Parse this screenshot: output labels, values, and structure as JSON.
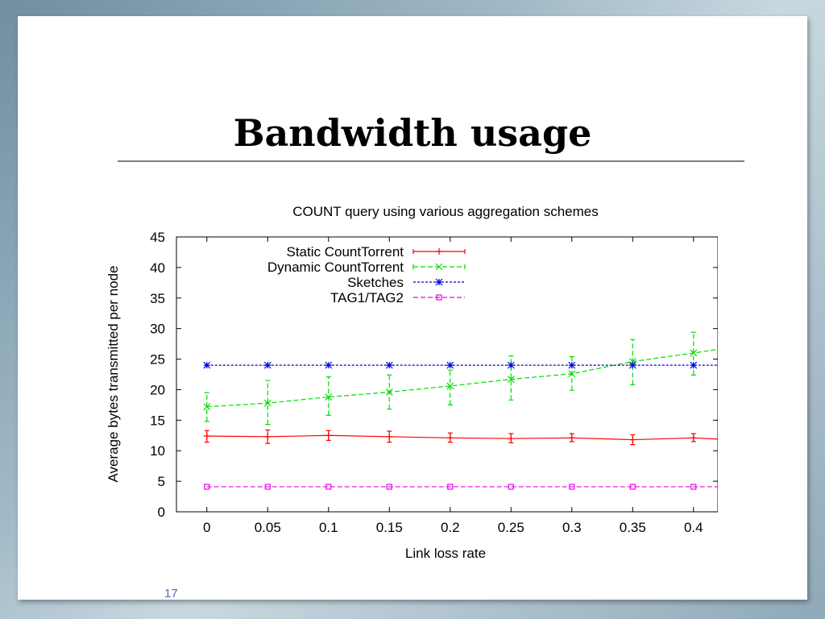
{
  "slide": {
    "title": "Bandwidth usage",
    "page_number": "17"
  },
  "chart_data": {
    "type": "line",
    "title": "COUNT query using various aggregation schemes",
    "xlabel": "Link loss rate",
    "ylabel": "Average bytes transmitted per node",
    "x": [
      0,
      0.05,
      0.1,
      0.15,
      0.2,
      0.25,
      0.3,
      0.35,
      0.4
    ],
    "x_tick_labels": [
      "0",
      "0.05",
      "0.1",
      "0.15",
      "0.2",
      "0.25",
      "0.3",
      "0.35",
      "0.4"
    ],
    "y_ticks": [
      "0",
      "5",
      "10",
      "15",
      "20",
      "25",
      "30",
      "35",
      "40",
      "45"
    ],
    "xlim": [
      -0.025,
      0.42
    ],
    "ylim": [
      0,
      45
    ],
    "legend_position": "top-left",
    "grid": false,
    "series": [
      {
        "name": "Static CountTorrent",
        "color": "#ff0000",
        "dash": "solid",
        "marker": "plus",
        "values": [
          12.4,
          12.3,
          12.5,
          12.3,
          12.1,
          12.0,
          12.1,
          11.8,
          12.1
        ],
        "err_low": [
          11.4,
          11.2,
          11.7,
          11.4,
          11.4,
          11.3,
          11.5,
          11.0,
          11.5
        ],
        "err_high": [
          13.3,
          13.4,
          13.3,
          13.2,
          12.9,
          12.8,
          12.8,
          12.6,
          12.8
        ],
        "end_value": 11.9
      },
      {
        "name": "Dynamic CountTorrent",
        "color": "#00dd00",
        "dash": "dashed",
        "marker": "cross",
        "values": [
          17.2,
          17.8,
          18.8,
          19.6,
          20.6,
          21.7,
          22.6,
          24.6,
          26.0
        ],
        "err_low": [
          14.8,
          14.3,
          15.8,
          16.8,
          17.5,
          18.3,
          19.9,
          20.8,
          22.4
        ],
        "err_high": [
          19.5,
          21.5,
          22.1,
          22.4,
          23.2,
          25.5,
          25.4,
          28.2,
          29.4
        ],
        "end_value": 26.6
      },
      {
        "name": "Sketches",
        "color": "#0000dd",
        "dash": "dotted",
        "marker": "star",
        "values": [
          24.0,
          24.0,
          24.0,
          24.0,
          24.0,
          24.0,
          24.0,
          24.0,
          24.0
        ],
        "end_value": 24.0
      },
      {
        "name": "TAG1/TAG2",
        "color": "#ee00ee",
        "dash": "dashed",
        "marker": "square",
        "values": [
          4.1,
          4.1,
          4.1,
          4.1,
          4.1,
          4.1,
          4.1,
          4.1,
          4.1
        ],
        "end_value": 4.1
      }
    ]
  }
}
